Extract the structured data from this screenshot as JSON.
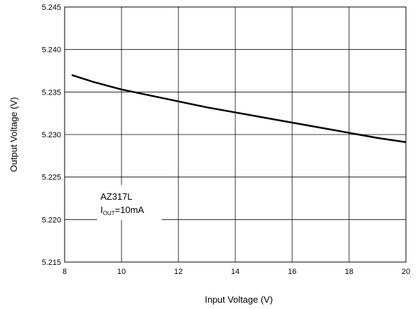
{
  "chart_data": {
    "type": "line",
    "title": "",
    "xlabel": "Input Voltage (V)",
    "ylabel": "Output Voltage (V)",
    "xlim": [
      8,
      20
    ],
    "ylim": [
      5.215,
      5.245
    ],
    "xticks": [
      8,
      10,
      12,
      14,
      16,
      18,
      20
    ],
    "yticks": [
      5.215,
      5.22,
      5.225,
      5.23,
      5.235,
      5.24,
      5.245
    ],
    "xtick_labels": [
      "8",
      "10",
      "12",
      "14",
      "16",
      "18",
      "20"
    ],
    "ytick_labels": [
      "5.215",
      "5.220",
      "5.225",
      "5.230",
      "5.235",
      "5.240",
      "5.245"
    ],
    "grid": true,
    "legend": "none",
    "series": [
      {
        "x": [
          8.25,
          9,
          10,
          11,
          12,
          13,
          14,
          15,
          16,
          17,
          18,
          19,
          20
        ],
        "y": [
          5.237,
          5.2362,
          5.2353,
          5.2346,
          5.2339,
          5.2332,
          5.2326,
          5.232,
          5.2314,
          5.2308,
          5.2302,
          5.2296,
          5.2291
        ],
        "color": "#000000"
      }
    ],
    "annotation": {
      "line1": "AZ317L",
      "main": "I",
      "sub": "OUT",
      "rest": "=10mA"
    }
  }
}
